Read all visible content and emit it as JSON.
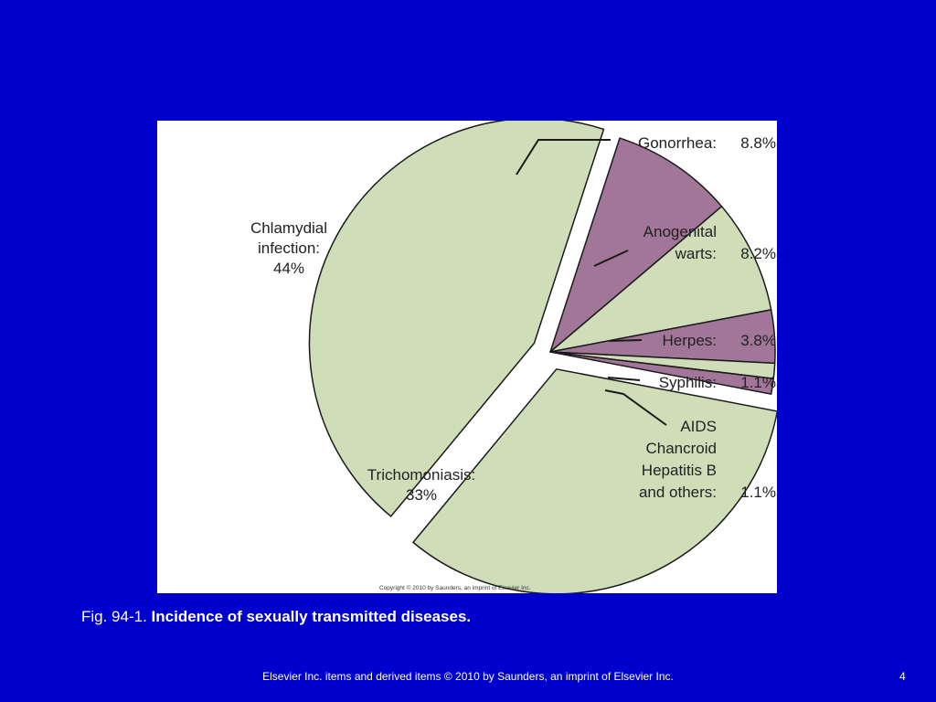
{
  "colors": {
    "background": "#0000cc",
    "green_slice": "#cfdeb8",
    "purple_slice": "#a17699",
    "outline": "#1a1a1a"
  },
  "chart_data": {
    "type": "pie",
    "slices": [
      {
        "id": "chlamydial",
        "label_lines": [
          "Chlamydial",
          "infection:",
          "44%"
        ],
        "value": 44,
        "color": "#cfdeb8",
        "exploded": true
      },
      {
        "id": "gonorrhea",
        "label_lines": [
          "Gonorrhea:"
        ],
        "pct_label": "8.8%",
        "value": 8.8,
        "color": "#a17699"
      },
      {
        "id": "warts",
        "label_lines": [
          "Anogenital",
          "warts:"
        ],
        "pct_label": "8.2%",
        "value": 8.2,
        "color": "#cfdeb8"
      },
      {
        "id": "herpes",
        "label_lines": [
          "Herpes:"
        ],
        "pct_label": "3.8%",
        "value": 3.8,
        "color": "#a17699"
      },
      {
        "id": "syphilis",
        "label_lines": [
          "Syphilis:"
        ],
        "pct_label": "1.1%",
        "value": 1.1,
        "color": "#cfdeb8"
      },
      {
        "id": "others",
        "label_lines": [
          "AIDS",
          "Chancroid",
          "Hepatitis B",
          "and others:"
        ],
        "pct_label": "1.1%",
        "value": 1.1,
        "color": "#a17699"
      },
      {
        "id": "trichomoniasis",
        "label_lines": [
          "Trichomoniasis:",
          "33%"
        ],
        "value": 33,
        "color": "#cfdeb8",
        "exploded": true
      }
    ],
    "copyright": "Copyright © 2010 by Saunders, an imprint of Elsevier Inc."
  },
  "caption": {
    "prefix": "Fig. 94-1. ",
    "title": "Incidence of sexually transmitted diseases."
  },
  "footer": {
    "text": "Elsevier Inc. items and derived items © 2010 by Saunders, an imprint of Elsevier Inc.",
    "page_number": "4"
  }
}
